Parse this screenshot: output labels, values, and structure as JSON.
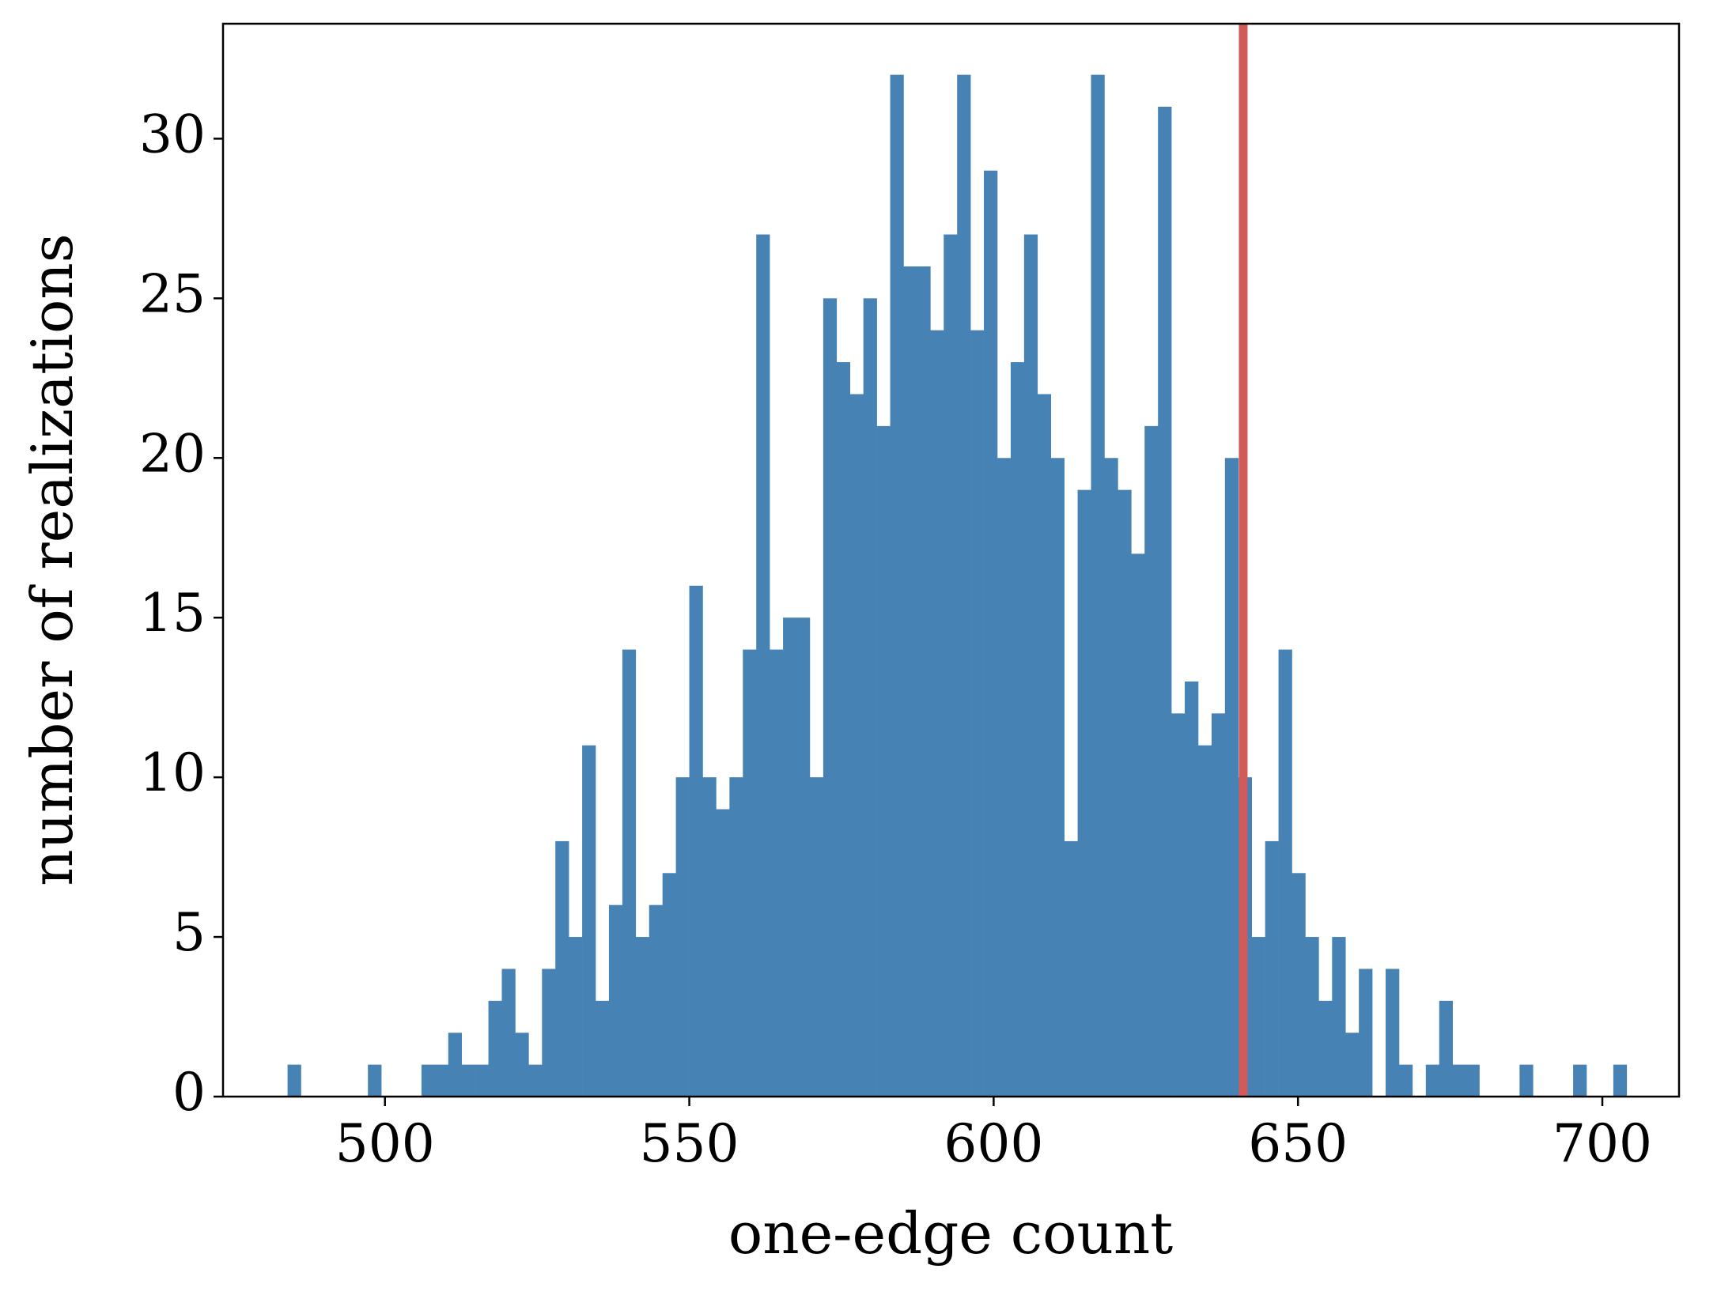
{
  "chart_data": {
    "type": "histogram",
    "xlabel": "one-edge count",
    "ylabel": "number of realizations",
    "color": "#4682b4",
    "bins": [
      484,
      486.2,
      488.4,
      490.6,
      492.8,
      495,
      497.2,
      499.4,
      501.6,
      503.8,
      506,
      508.2,
      510.4,
      512.6,
      514.8,
      517,
      519.2,
      521.4,
      523.6,
      525.8,
      528,
      530.2,
      532.4,
      534.6,
      536.8,
      539,
      541.2,
      543.4,
      545.6,
      547.8,
      550,
      552.2,
      554.4,
      556.6,
      558.8,
      561,
      563.2,
      565.4,
      567.6,
      569.8,
      572,
      574.2,
      576.4,
      578.6,
      580.8,
      583,
      585.2,
      587.4,
      589.6,
      591.8,
      594,
      596.2,
      598.4,
      600.6,
      602.8,
      605,
      607.2,
      609.4,
      611.6,
      613.8,
      616,
      618.2,
      620.4,
      622.6,
      624.8,
      627,
      629.2,
      631.4,
      633.6,
      635.8,
      638,
      640.2,
      642.4,
      644.6,
      646.8,
      649,
      651.2,
      653.4,
      655.6,
      657.8,
      660,
      662.2,
      664.4,
      666.6,
      668.8,
      671,
      673.2,
      675.4,
      677.6,
      679.8,
      682,
      684.2,
      686.4,
      688.6,
      690.8,
      693,
      695.2,
      697.4,
      699.6,
      701.8,
      704
    ],
    "values": [
      1,
      0,
      0,
      0,
      0,
      0,
      1,
      0,
      0,
      0,
      1,
      1,
      2,
      1,
      1,
      3,
      4,
      2,
      1,
      4,
      8,
      5,
      11,
      3,
      6,
      14,
      5,
      6,
      7,
      10,
      16,
      10,
      9,
      10,
      14,
      27,
      14,
      15,
      15,
      10,
      25,
      23,
      22,
      25,
      21,
      32,
      26,
      26,
      24,
      27,
      32,
      24,
      29,
      20,
      23,
      27,
      22,
      20,
      8,
      19,
      32,
      20,
      19,
      17,
      21,
      31,
      12,
      13,
      11,
      12,
      20,
      10,
      5,
      8,
      14,
      7,
      5,
      3,
      5,
      2,
      4,
      0,
      4,
      1,
      0,
      1,
      3,
      1,
      1,
      0,
      0,
      0,
      1,
      0,
      0,
      0,
      1,
      0,
      0,
      1
    ],
    "vline": {
      "value": 641,
      "color": "#d15b5b"
    },
    "xlim": [
      473.4,
      712.6
    ],
    "ylim": [
      0,
      33.6
    ],
    "xticks": [
      500,
      550,
      600,
      650,
      700
    ],
    "yticks": [
      0,
      5,
      10,
      15,
      20,
      25,
      30
    ]
  }
}
